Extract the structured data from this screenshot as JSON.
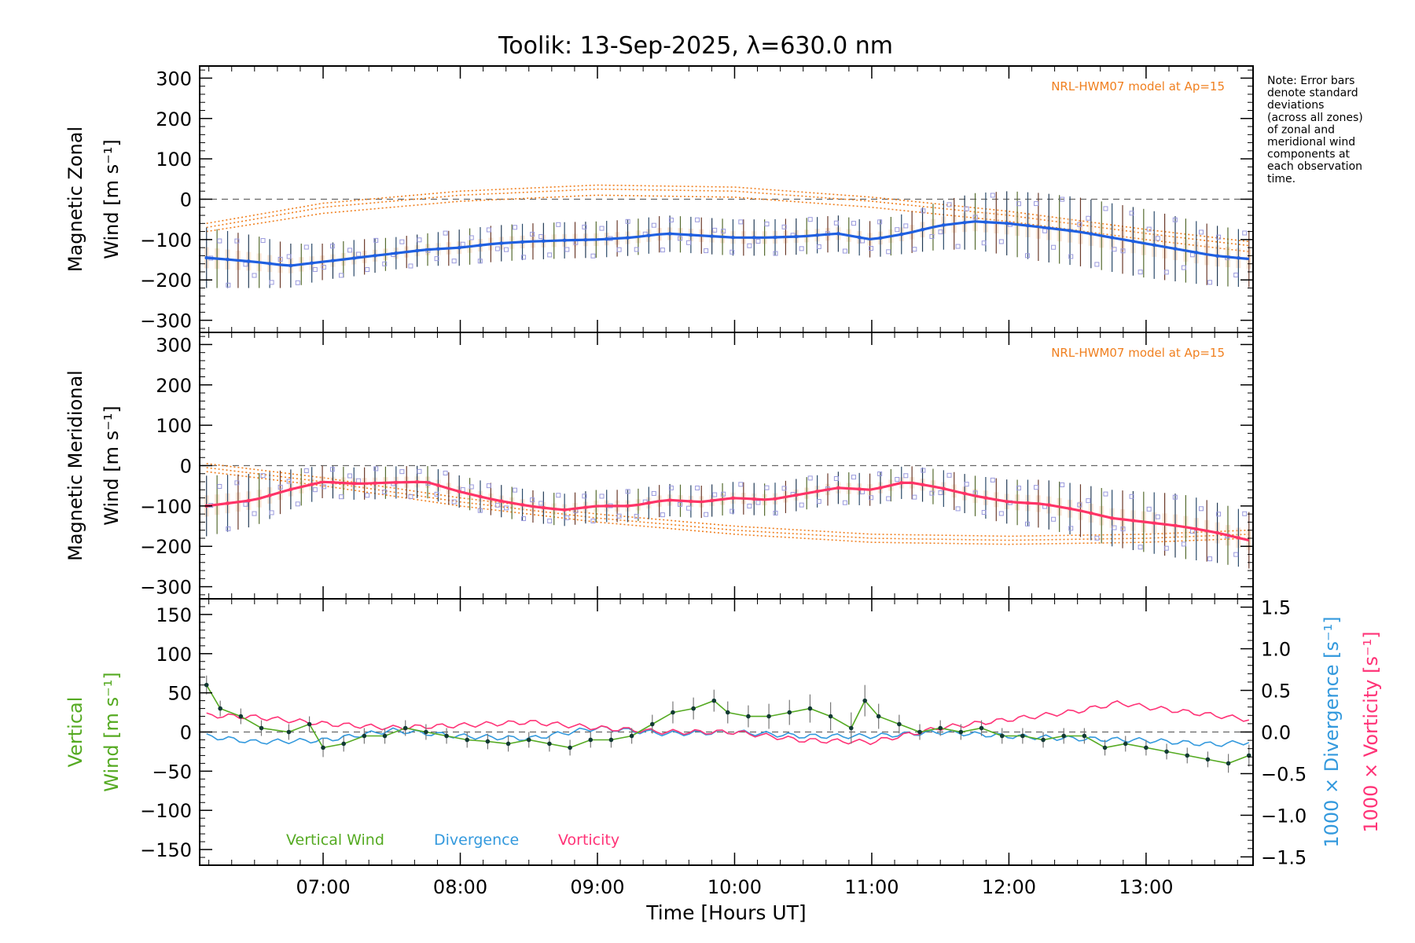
{
  "title": "Toolik: 13-Sep-2025, λ=630.0 nm",
  "note_lines": [
    "Note: Error bars",
    "denote standard",
    "deviations",
    "(across all zones)",
    "of zonal and",
    "meridional wind",
    "components at",
    "each observation",
    "time."
  ],
  "colors": {
    "zonal": "#1f5fe0",
    "meridional": "#ff3366",
    "vertical": "#55aa22",
    "divergence": "#3399dd",
    "vorticity": "#ff3377",
    "model": "#f08020",
    "scatter": "#9999dd",
    "errbar": "#2a4a6a"
  },
  "chart_data": [
    {
      "id": "zonal",
      "type": "line",
      "ylabel_lines": [
        "Magnetic Zonal",
        "Wind [m s⁻¹]"
      ],
      "ylim": [
        -330,
        330
      ],
      "yticks": [
        300,
        200,
        100,
        0,
        -100,
        -200,
        -300
      ],
      "ytick_labels": [
        "300",
        "200",
        "100",
        "0",
        "−100",
        "−200",
        "−300"
      ],
      "model_label": "NRL-HWM07 model at Ap=15",
      "x": [
        6.15,
        6.5,
        6.75,
        7.0,
        7.25,
        7.5,
        7.75,
        8.0,
        8.25,
        8.5,
        8.75,
        9.0,
        9.25,
        9.5,
        9.75,
        10.0,
        10.25,
        10.5,
        10.75,
        11.0,
        11.25,
        11.5,
        11.75,
        12.0,
        12.25,
        12.5,
        12.75,
        13.0,
        13.25,
        13.5,
        13.75
      ],
      "values": [
        -145,
        -155,
        -165,
        -155,
        -145,
        -135,
        -125,
        -120,
        -110,
        -105,
        -102,
        -100,
        -95,
        -85,
        -90,
        -95,
        -95,
        -92,
        -85,
        -100,
        -85,
        -65,
        -55,
        -60,
        -70,
        -80,
        -95,
        -110,
        -125,
        -140,
        -148
      ],
      "error": [
        75,
        65,
        55,
        45,
        45,
        40,
        40,
        45,
        45,
        45,
        45,
        45,
        45,
        45,
        45,
        45,
        45,
        45,
        45,
        45,
        50,
        60,
        70,
        80,
        85,
        85,
        85,
        85,
        80,
        75,
        70
      ],
      "model_x": [
        6.15,
        7.0,
        8.0,
        9.0,
        10.0,
        11.0,
        12.0,
        13.0,
        13.75
      ],
      "model_lines": [
        [
          -60,
          -10,
          20,
          35,
          30,
          5,
          -30,
          -75,
          -105
        ],
        [
          -70,
          -20,
          10,
          25,
          20,
          -5,
          -40,
          -85,
          -115
        ],
        [
          -80,
          -35,
          -5,
          10,
          5,
          -20,
          -55,
          -100,
          -130
        ]
      ]
    },
    {
      "id": "meridional",
      "type": "line",
      "ylabel_lines": [
        "Magnetic Meridional",
        "Wind [m s⁻¹]"
      ],
      "ylim": [
        -330,
        330
      ],
      "yticks": [
        300,
        200,
        100,
        0,
        -100,
        -200,
        -300
      ],
      "ytick_labels": [
        "300",
        "200",
        "100",
        "0",
        "−100",
        "−200",
        "−300"
      ],
      "model_label": "NRL-HWM07 model at Ap=15",
      "x": [
        6.15,
        6.5,
        6.75,
        7.0,
        7.25,
        7.5,
        7.75,
        8.0,
        8.25,
        8.5,
        8.75,
        9.0,
        9.25,
        9.5,
        9.75,
        10.0,
        10.25,
        10.5,
        10.75,
        11.0,
        11.25,
        11.5,
        11.75,
        12.0,
        12.25,
        12.5,
        12.75,
        13.0,
        13.25,
        13.5,
        13.75
      ],
      "values": [
        -100,
        -85,
        -60,
        -40,
        -45,
        -42,
        -40,
        -65,
        -85,
        -100,
        -110,
        -100,
        -100,
        -85,
        -90,
        -80,
        -85,
        -70,
        -55,
        -60,
        -40,
        -55,
        -75,
        -90,
        -95,
        -110,
        -130,
        -140,
        -150,
        -165,
        -185
      ],
      "error": [
        75,
        65,
        50,
        40,
        40,
        40,
        40,
        40,
        40,
        40,
        40,
        40,
        40,
        40,
        40,
        40,
        40,
        40,
        40,
        40,
        40,
        45,
        50,
        55,
        60,
        65,
        70,
        75,
        80,
        75,
        70
      ],
      "model_x": [
        6.15,
        7.0,
        8.0,
        9.0,
        10.0,
        11.0,
        12.0,
        13.0,
        13.75
      ],
      "model_lines": [
        [
          5,
          -30,
          -80,
          -120,
          -150,
          -170,
          -175,
          -170,
          -160
        ],
        [
          -5,
          -40,
          -90,
          -130,
          -160,
          -180,
          -185,
          -180,
          -170
        ],
        [
          -15,
          -50,
          -100,
          -140,
          -170,
          -190,
          -195,
          -190,
          -180
        ]
      ]
    },
    {
      "id": "vertical",
      "type": "line",
      "ylabel_left_lines": [
        "Vertical",
        "Wind [m s⁻¹]"
      ],
      "ylabel_right_1": "1000 × Divergence [s⁻¹]",
      "ylabel_right_2": "1000 × Vorticity [s⁻¹]",
      "ylim": [
        -170,
        170
      ],
      "yticks": [
        150,
        100,
        50,
        0,
        -50,
        -100,
        -150
      ],
      "ytick_labels": [
        "150",
        "100",
        "50",
        "0",
        "−50",
        "−100",
        "−150"
      ],
      "y2lim": [
        -1.6,
        1.6
      ],
      "y2ticks": [
        1.5,
        1.0,
        0.5,
        0.0,
        -0.5,
        -1.0,
        -1.5
      ],
      "y2tick_labels": [
        "1.5",
        "1.0",
        "0.5",
        "0.0",
        "−0.5",
        "−1.0",
        "−1.5"
      ],
      "legend": [
        "Vertical Wind",
        "Divergence",
        "Vorticity"
      ],
      "xlabel": "Time [Hours UT]",
      "xticks": [
        7,
        8,
        9,
        10,
        11,
        12,
        13
      ],
      "xtick_labels": [
        "07:00",
        "08:00",
        "09:00",
        "10:00",
        "11:00",
        "12:00",
        "13:00"
      ],
      "xlim": [
        6.1,
        13.78
      ],
      "vertical_x": [
        6.15,
        6.25,
        6.4,
        6.55,
        6.75,
        6.9,
        7.0,
        7.15,
        7.3,
        7.45,
        7.6,
        7.75,
        7.9,
        8.05,
        8.2,
        8.35,
        8.5,
        8.65,
        8.8,
        8.95,
        9.1,
        9.25,
        9.4,
        9.55,
        9.7,
        9.85,
        9.95,
        10.1,
        10.25,
        10.4,
        10.55,
        10.7,
        10.85,
        10.95,
        11.05,
        11.2,
        11.35,
        11.5,
        11.65,
        11.8,
        11.95,
        12.1,
        12.25,
        12.4,
        12.55,
        12.7,
        12.85,
        13.0,
        13.15,
        13.3,
        13.45,
        13.6,
        13.75
      ],
      "vertical_values": [
        60,
        30,
        20,
        5,
        0,
        10,
        -20,
        -15,
        -5,
        -5,
        5,
        0,
        -5,
        -10,
        -12,
        -15,
        -10,
        -15,
        -20,
        -10,
        -10,
        -5,
        10,
        25,
        30,
        40,
        25,
        20,
        20,
        25,
        30,
        20,
        5,
        40,
        20,
        10,
        0,
        5,
        0,
        5,
        -5,
        -5,
        -10,
        -5,
        -5,
        -20,
        -15,
        -20,
        -25,
        -30,
        -35,
        -40,
        -30
      ],
      "vertical_errors": [
        12,
        10,
        10,
        10,
        10,
        10,
        12,
        10,
        10,
        10,
        10,
        10,
        10,
        10,
        10,
        10,
        10,
        10,
        10,
        10,
        10,
        10,
        12,
        14,
        14,
        14,
        14,
        14,
        16,
        16,
        18,
        18,
        20,
        20,
        16,
        12,
        10,
        10,
        10,
        10,
        10,
        10,
        10,
        10,
        10,
        10,
        10,
        10,
        10,
        10,
        10,
        12,
        14
      ],
      "divergence_x": [
        6.15,
        6.5,
        7.0,
        7.5,
        8.0,
        8.5,
        9.0,
        9.5,
        10.0,
        10.5,
        11.0,
        11.5,
        12.0,
        12.5,
        13.0,
        13.5,
        13.75
      ],
      "divergence_values": [
        -0.05,
        -0.12,
        -0.1,
        0.02,
        -0.05,
        -0.08,
        0.05,
        -0.02,
        0.0,
        -0.05,
        -0.05,
        0.0,
        -0.05,
        -0.08,
        -0.1,
        -0.15,
        -0.12
      ],
      "vorticity_x": [
        6.15,
        6.5,
        7.0,
        7.5,
        8.0,
        8.5,
        9.0,
        9.5,
        10.0,
        10.5,
        11.0,
        11.5,
        12.0,
        12.5,
        12.8,
        13.0,
        13.5,
        13.75
      ],
      "vorticity_values": [
        0.2,
        0.18,
        0.1,
        0.05,
        0.08,
        0.12,
        0.05,
        0.0,
        0.0,
        -0.1,
        -0.12,
        0.05,
        0.15,
        0.25,
        0.35,
        0.3,
        0.2,
        0.15
      ]
    }
  ]
}
